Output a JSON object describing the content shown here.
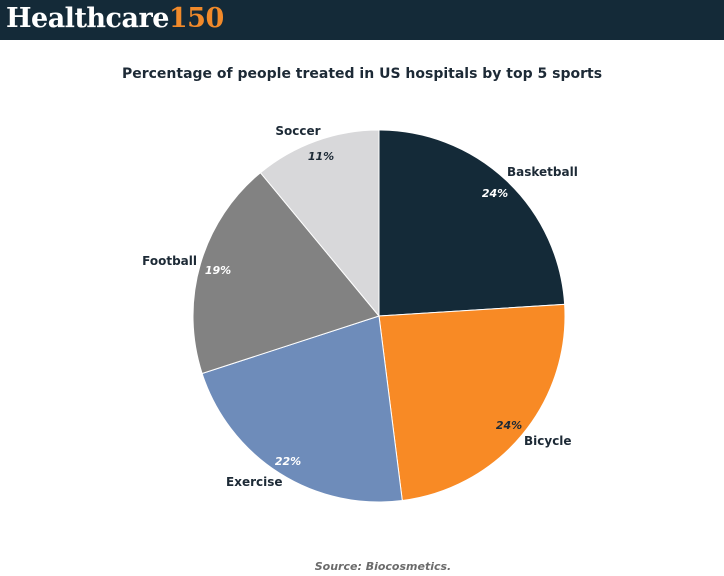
{
  "header": {
    "logo_word": "Healthcare",
    "logo_number": "150"
  },
  "source": "Source: Biocosmetics.",
  "colors": {
    "header_bg": "#142a38",
    "logo_accent": "#f28a2a"
  },
  "chart_data": {
    "type": "pie",
    "title": "Percentage of people treated in US hospitals by top 5 sports",
    "start": "12 o'clock",
    "direction": "clockwise",
    "slices": [
      {
        "label": "Basketball",
        "value": 24,
        "value_label": "24%",
        "color": "#142a38",
        "pct_color": "#ffffff"
      },
      {
        "label": "Bicycle",
        "value": 24,
        "value_label": "24%",
        "color": "#f88a25",
        "pct_color": "#1d2a36"
      },
      {
        "label": "Exercise",
        "value": 22,
        "value_label": "22%",
        "color": "#6e8cba",
        "pct_color": "#ffffff"
      },
      {
        "label": "Football",
        "value": 19,
        "value_label": "19%",
        "color": "#828282",
        "pct_color": "#ffffff"
      },
      {
        "label": "Soccer",
        "value": 11,
        "value_label": "11%",
        "color": "#d8d8da",
        "pct_color": "#1d2a36"
      }
    ]
  }
}
